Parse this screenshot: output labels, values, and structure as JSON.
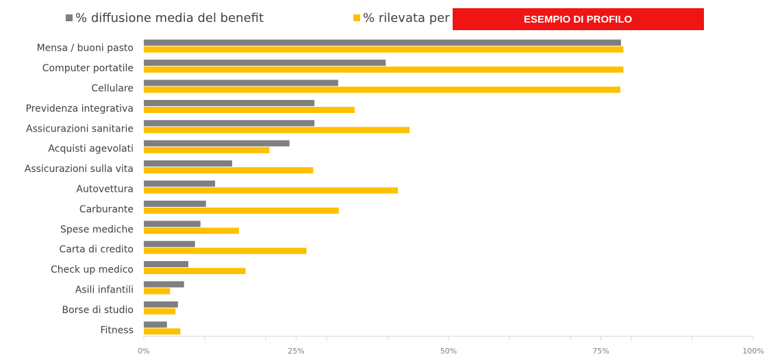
{
  "chart_data": {
    "type": "barh",
    "categories": [
      "Mensa / buoni pasto",
      "Computer portatile",
      "Cellulare",
      "Previdenza integrativa",
      "Assicurazioni sanitarie",
      "Acquisti agevolati",
      "Assicurazioni sulla vita",
      "Autovettura",
      "Carburante",
      "Spese mediche",
      "Carta di credito",
      "Check up medico",
      "Asili infantili",
      "Borse di studio",
      "Fitness"
    ],
    "series": [
      {
        "name": "% diffusione media del benefit",
        "color": "#7f7f7f",
        "values": [
          78.3,
          39.7,
          31.9,
          28.0,
          28.0,
          23.9,
          14.5,
          11.7,
          10.2,
          9.3,
          8.4,
          7.3,
          6.6,
          5.6,
          3.8
        ]
      },
      {
        "name": "% rilevata per g",
        "color": "#ffc000",
        "values": [
          78.7,
          78.7,
          78.2,
          34.6,
          43.6,
          20.6,
          27.8,
          41.7,
          32.0,
          15.6,
          26.7,
          16.7,
          4.3,
          5.2,
          6.0
        ]
      }
    ],
    "xlim": [
      0,
      100
    ],
    "xticks": [
      {
        "value": 0,
        "label": "0%"
      },
      {
        "value": 25,
        "label": "25%"
      },
      {
        "value": 50,
        "label": "50%"
      },
      {
        "value": 75,
        "label": "75%"
      },
      {
        "value": 100,
        "label": "100%"
      }
    ],
    "xminorticks": [
      10,
      20,
      30,
      40,
      60,
      70,
      80,
      90
    ],
    "legend": "top",
    "annotation": "ESEMPIO DI PROFILO"
  }
}
